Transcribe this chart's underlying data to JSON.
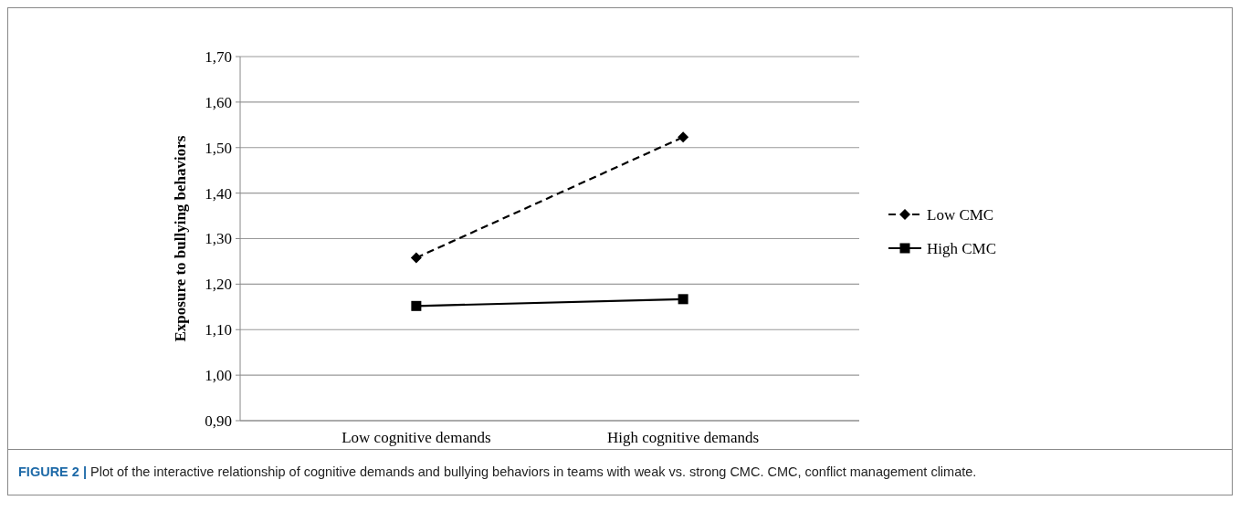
{
  "chart_data": {
    "type": "line",
    "ylabel": "Exposure to bullying behaviors",
    "categories": [
      "Low cognitive demands",
      "High cognitive demands"
    ],
    "series": [
      {
        "name": "Low CMC",
        "color": "#000000",
        "values": [
          1.258,
          1.523
        ],
        "marker": "diamond",
        "line_style": "dashed"
      },
      {
        "name": "High CMC",
        "color": "#000000",
        "values": [
          1.152,
          1.167
        ],
        "marker": "square",
        "line_style": "solid"
      }
    ],
    "ylim": [
      0.9,
      1.7
    ],
    "yticks": [
      {
        "value": 0.9,
        "label": "0,90"
      },
      {
        "value": 1.0,
        "label": "1,00"
      },
      {
        "value": 1.1,
        "label": "1,10"
      },
      {
        "value": 1.2,
        "label": "1,20"
      },
      {
        "value": 1.3,
        "label": "1,30"
      },
      {
        "value": 1.4,
        "label": "1,40"
      },
      {
        "value": 1.5,
        "label": "1,50"
      },
      {
        "value": 1.6,
        "label": "1,60"
      },
      {
        "value": 1.7,
        "label": "1,70"
      }
    ],
    "grid": "y",
    "legend": "right",
    "annotations": [
      "FIGURE 2 | Plot of the interactive relationship of cognitive demands and bullying behaviors in teams with weak vs. strong CMC. CMC, conflict management climate."
    ]
  }
}
